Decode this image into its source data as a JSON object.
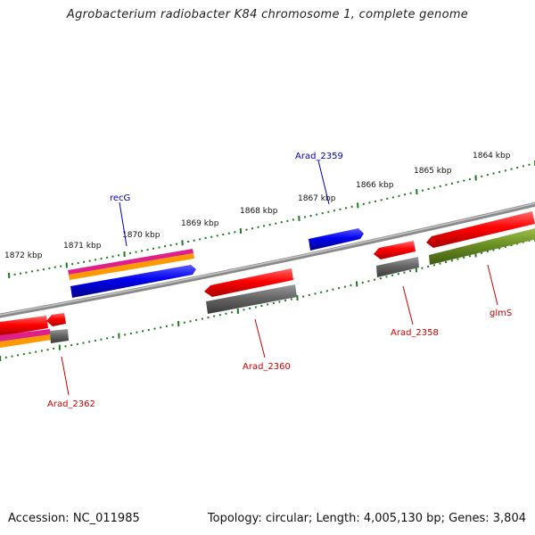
{
  "title": "Agrobacterium radiobacter K84 chromosome 1, complete genome",
  "footer": {
    "accession": "Accession: NC_011985",
    "summary": "Topology: circular; Length: 4,005,130 bp; Genes: 3,804"
  },
  "ruler_labels": [
    "1872 kbp",
    "1871 kbp",
    "1870 kbp",
    "1869 kbp",
    "1868 kbp",
    "1867 kbp",
    "1866 kbp",
    "1865 kbp",
    "1864 kbp"
  ],
  "genes": {
    "forward": [
      {
        "name": "Arad_2359",
        "color": "#0000ee"
      },
      {
        "name": "recG",
        "color": "#0000ee"
      }
    ],
    "reverse": [
      {
        "name": "glmS",
        "color": "#ff0000"
      },
      {
        "name": "Arad_2358",
        "color": "#ff0000"
      },
      {
        "name": "Arad_2360",
        "color": "#ff0000"
      },
      {
        "name": "Arad_2362",
        "color": "#ff0000"
      }
    ]
  },
  "colors": {
    "backbone": "#888888",
    "ruler": "#1e7a1e",
    "gene_red": "#ff0000",
    "gene_blue": "#0000ee",
    "gene_gray": "#666666",
    "gene_olive": "#6b8e23",
    "gene_magenta": "#e0208a",
    "gene_orange": "#ff9900",
    "label_red": "#cc0000",
    "label_blue": "#0000bb"
  }
}
